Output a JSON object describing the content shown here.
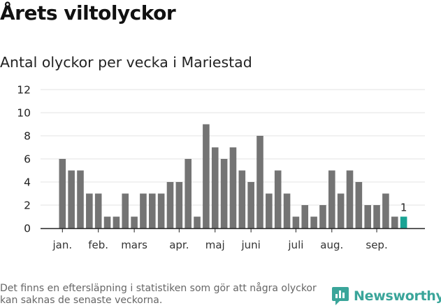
{
  "header": {
    "title": "Årets viltolyckor",
    "subtitle": "Antal olyckor per vecka i Mariestad"
  },
  "chart_data": {
    "type": "bar",
    "title": "Antal olyckor per vecka i Mariestad",
    "xlabel": "",
    "ylabel": "",
    "ylim": [
      0,
      12
    ],
    "yticks": [
      0,
      2,
      4,
      6,
      8,
      10,
      12
    ],
    "grid": true,
    "legend": "none",
    "colors": {
      "bar": "#747474",
      "highlight": "#1aa394",
      "grid": "#e3e3e3",
      "axis": "#222222"
    },
    "values": [
      6,
      5,
      5,
      3,
      3,
      1,
      1,
      3,
      1,
      3,
      3,
      3,
      4,
      4,
      6,
      1,
      9,
      7,
      6,
      7,
      5,
      4,
      8,
      3,
      5,
      3,
      1,
      2,
      1,
      2,
      5,
      3,
      5,
      4,
      2,
      2,
      3,
      1,
      1
    ],
    "highlight_index": 38,
    "data_labels": [
      {
        "index": 38,
        "text": "1"
      }
    ],
    "month_labels": [
      {
        "label": "jan.",
        "week_index": 0
      },
      {
        "label": "feb.",
        "week_index": 4
      },
      {
        "label": "mars",
        "week_index": 8
      },
      {
        "label": "apr.",
        "week_index": 13
      },
      {
        "label": "maj",
        "week_index": 17
      },
      {
        "label": "juni",
        "week_index": 21
      },
      {
        "label": "juli",
        "week_index": 26
      },
      {
        "label": "aug.",
        "week_index": 30
      },
      {
        "label": "sep.",
        "week_index": 35
      }
    ]
  },
  "footer": {
    "note": "Det finns en eftersläpning i statistiken som gör att några olyckor kan saknas de senaste veckorna.",
    "brand": "Newsworthy",
    "brand_icon": "newsworthy-logo-icon"
  }
}
